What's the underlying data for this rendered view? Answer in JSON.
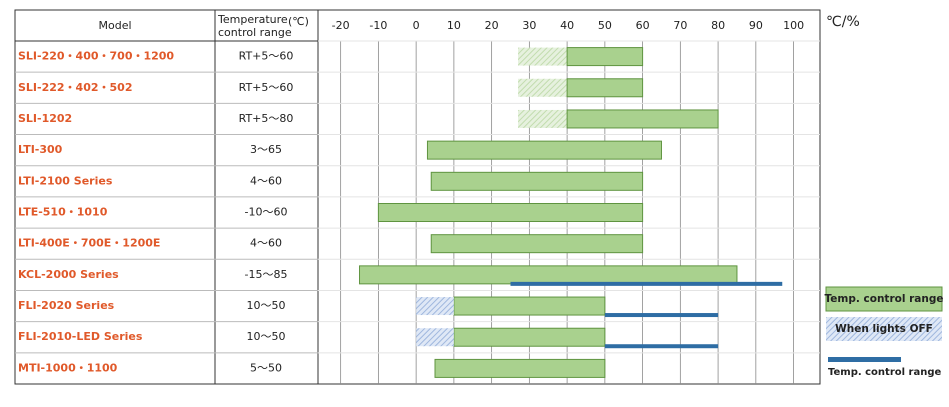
{
  "chart_data": {
    "type": "range",
    "model_header": "Model",
    "range_header": [
      "Temperature",
      "control range"
    ],
    "unit_header": "(℃)",
    "axis_label": "℃/%",
    "categories": [
      "SLI-220・400・700・1200",
      "SLI-222・402・502",
      "SLI-1202",
      "LTI-300",
      "LTI-2100 Series",
      "LTE-510・1010",
      "LTI-400E・700E・1200E",
      "KCL-2000 Series",
      "FLI-2020 Series",
      "FLI-2010-LED Series",
      "MTI-1000・1100"
    ],
    "control_ranges": [
      "RT+5～60",
      "RT+5～60",
      "RT+5～80",
      "3～65",
      "4～60",
      "-10～60",
      "4～60",
      "-15～85",
      "10～50",
      "10～50",
      "5～50"
    ],
    "xlim": [
      -26,
      107
    ],
    "xticks": [
      -20,
      -10,
      0,
      10,
      20,
      30,
      40,
      50,
      60,
      70,
      80,
      90,
      100
    ],
    "grid": true,
    "series": [
      {
        "color": "#d5e8c8",
        "style": "hatch-green",
        "values": [
          [
            27,
            40
          ],
          [
            27,
            40
          ],
          [
            27,
            40
          ],
          null,
          null,
          null,
          null,
          null,
          null,
          null,
          null
        ]
      },
      {
        "name": "Temp. control range",
        "color": "#a9d18e",
        "style": "box",
        "values": [
          [
            40,
            60
          ],
          [
            40,
            60
          ],
          [
            40,
            80
          ],
          [
            3,
            65
          ],
          [
            4,
            60
          ],
          [
            -10,
            60
          ],
          [
            4,
            60
          ],
          [
            -15,
            85
          ],
          [
            10,
            50
          ],
          [
            10,
            50
          ],
          [
            5,
            50
          ]
        ]
      },
      {
        "name": "When lights OFF",
        "color": "#b4c7e7",
        "style": "hatch-blue",
        "values": [
          null,
          null,
          null,
          null,
          null,
          null,
          null,
          null,
          [
            0,
            10
          ],
          [
            0,
            10
          ],
          null
        ]
      },
      {
        "name": "Temp. control range",
        "color": "#2e6da4",
        "style": "line",
        "values": [
          null,
          null,
          null,
          null,
          null,
          null,
          null,
          [
            25,
            97
          ],
          [
            50,
            80
          ],
          [
            50,
            80
          ],
          null
        ]
      }
    ]
  }
}
